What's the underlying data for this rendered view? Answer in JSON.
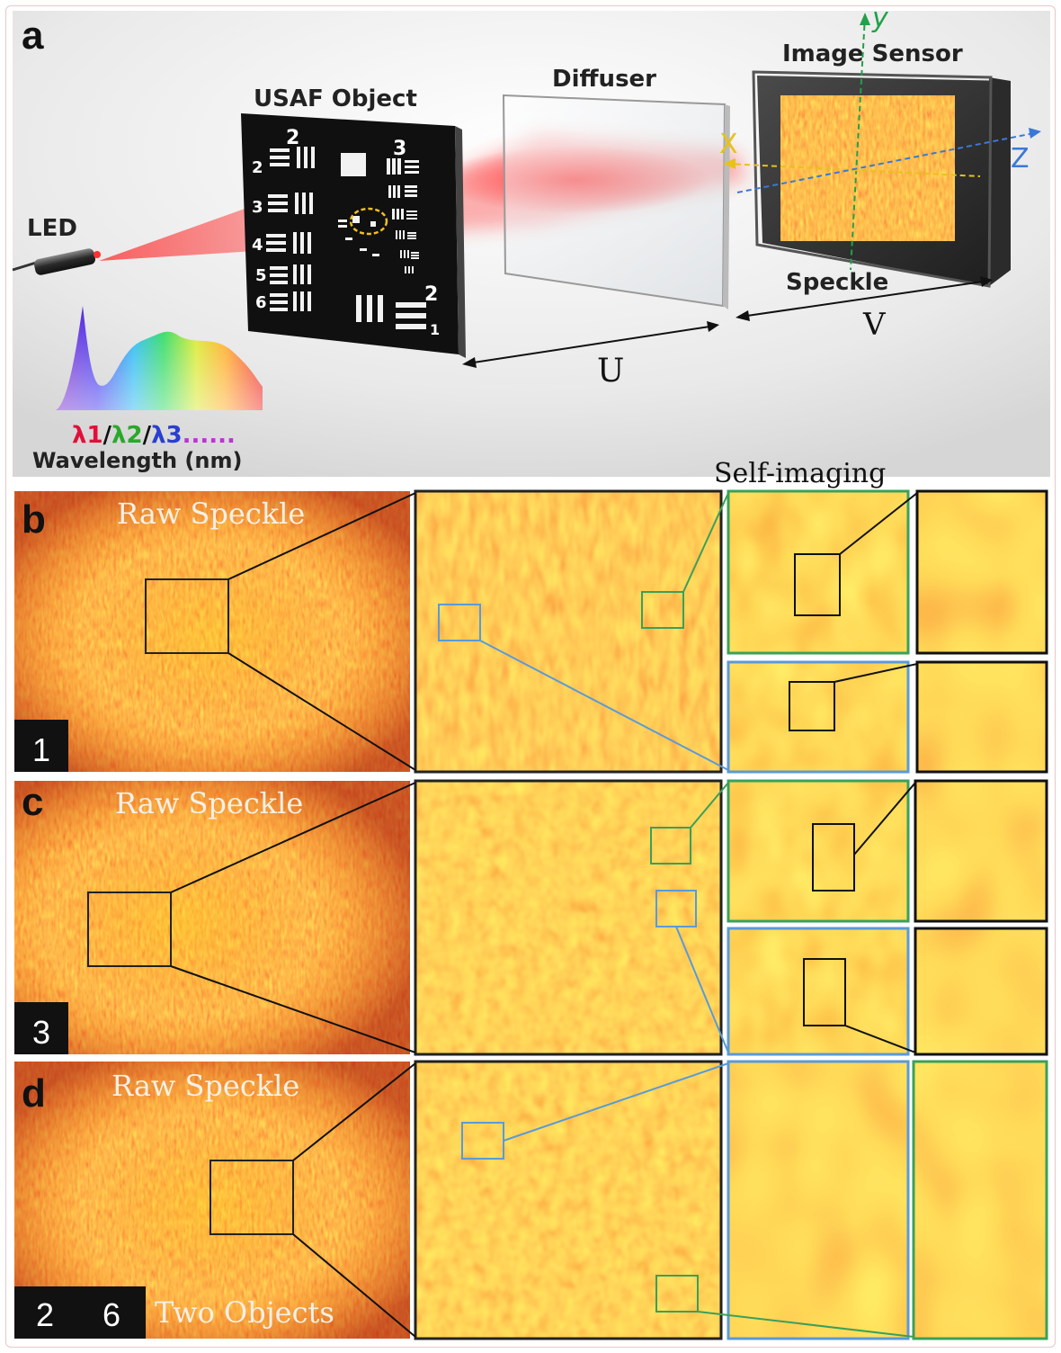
{
  "panel_a": {
    "letter": "a",
    "led_label": "LED",
    "object_label": "USAF Object",
    "diffuser_label": "Diffuser",
    "sensor_label": "Image Sensor",
    "speckle_label": "Speckle",
    "axis_x": "X",
    "axis_y": "y",
    "axis_z": "Z",
    "distance_u": "U",
    "distance_v": "V",
    "wavelength_l1": "λ1",
    "wavelength_l2": "λ2",
    "wavelength_l3": "λ3",
    "wavelength_dots": "......",
    "wavelength_sep": "/",
    "wavelength_axis": "Wavelength (nm)",
    "chart_numbers": [
      "2",
      "3",
      "2",
      "3",
      "4",
      "5",
      "6",
      "2",
      "1"
    ],
    "colors": {
      "l1": "#e0103a",
      "l2": "#2aa82a",
      "l3": "#2a3fd0",
      "dots": "#c030d8",
      "axis_y": "#22a04a",
      "axis_z": "#3a78d8",
      "axis_x": "#e6c21a"
    }
  },
  "self_imaging_label": "Self-imaging",
  "rows": [
    {
      "letter": "b",
      "raw_label": "Raw Speckle",
      "badges": [
        "1"
      ],
      "caption": ""
    },
    {
      "letter": "c",
      "raw_label": "Raw Speckle",
      "badges": [
        "3"
      ],
      "caption": ""
    },
    {
      "letter": "d",
      "raw_label": "Raw Speckle",
      "badges": [
        "2",
        "6"
      ],
      "caption": "Two Objects"
    }
  ]
}
